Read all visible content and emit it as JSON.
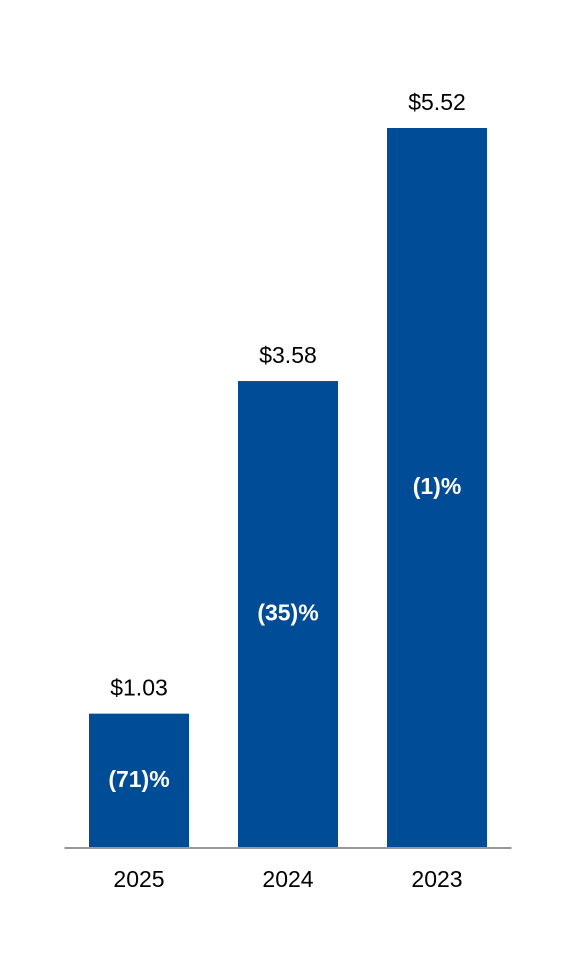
{
  "chart_data": {
    "type": "bar",
    "categories": [
      "2025",
      "2024",
      "2023"
    ],
    "values": [
      1.03,
      3.58,
      5.52
    ],
    "value_labels": [
      "$1.03",
      "$3.58",
      "$5.52"
    ],
    "annotations": [
      "(71)%",
      "(35)%",
      "(1)%"
    ],
    "color": "#004c97",
    "ylim": [
      0,
      6
    ]
  }
}
